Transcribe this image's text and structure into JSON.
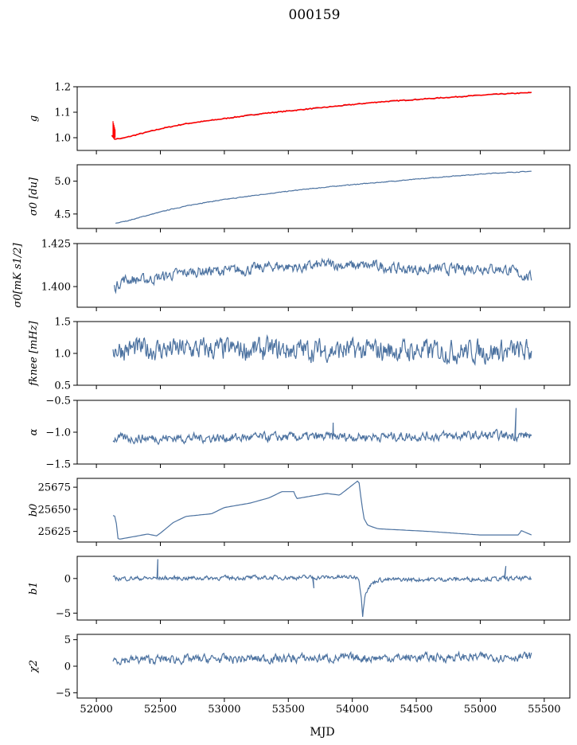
{
  "figure": {
    "title": "000159",
    "xlabel": "MJD",
    "x_ticks": [
      52000,
      52500,
      53000,
      53500,
      54000,
      54500,
      55000,
      55500
    ],
    "xlim": [
      51850,
      55700
    ],
    "line_color": "#4c72a0",
    "fit_color": "#ff0000"
  },
  "chart_data": [
    {
      "type": "line",
      "ylabel": "g",
      "ylim": [
        0.95,
        1.2
      ],
      "y_ticks": [
        1.0,
        1.1,
        1.2
      ],
      "y_tick_labels": [
        "1.0",
        "1.1",
        "1.2"
      ],
      "series": [
        {
          "x": [
            52120,
            52140,
            52200,
            52300,
            52500,
            52700,
            53000,
            53300,
            53600,
            53900,
            54200,
            54500,
            54800,
            55100,
            55400
          ],
          "y": [
            1.01,
            0.995,
            0.997,
            1.01,
            1.035,
            1.055,
            1.075,
            1.095,
            1.11,
            1.125,
            1.14,
            1.15,
            1.16,
            1.17,
            1.177
          ]
        }
      ],
      "fit": {
        "x": [
          52120,
          52140,
          52200,
          52300,
          52500,
          52700,
          53000,
          53300,
          53600,
          53900,
          54200,
          54500,
          54800,
          55100,
          55400
        ],
        "y": [
          1.01,
          0.995,
          0.997,
          1.01,
          1.035,
          1.055,
          1.075,
          1.095,
          1.11,
          1.125,
          1.14,
          1.15,
          1.16,
          1.17,
          1.177
        ]
      },
      "spike": {
        "x": 52130,
        "y_range": [
          1.0,
          1.065
        ]
      }
    },
    {
      "type": "line",
      "ylabel": "σ0 [du]",
      "ylim": [
        4.28,
        5.25
      ],
      "y_ticks": [
        4.5,
        5.0
      ],
      "y_tick_labels": [
        "4.5",
        "5.0"
      ],
      "series": [
        {
          "x": [
            52150,
            52250,
            52400,
            52600,
            52800,
            53000,
            53300,
            53600,
            53900,
            54200,
            54500,
            54800,
            55100,
            55400
          ],
          "y": [
            4.36,
            4.4,
            4.48,
            4.58,
            4.66,
            4.72,
            4.8,
            4.87,
            4.93,
            4.98,
            5.03,
            5.08,
            5.12,
            5.15
          ]
        }
      ],
      "noise": 0.005
    },
    {
      "type": "line",
      "ylabel": "σ0[mK s1/2]",
      "ylim": [
        1.388,
        1.425
      ],
      "y_ticks": [
        1.4,
        1.425
      ],
      "y_tick_labels": [
        "1.400",
        "1.425"
      ],
      "series": [
        {
          "x": [
            52140,
            52200,
            52400,
            52600,
            52800,
            53000,
            53200,
            53400,
            53600,
            53800,
            54000,
            54200,
            54400,
            54600,
            54800,
            55000,
            55200,
            55400
          ],
          "y": [
            1.399,
            1.404,
            1.404,
            1.407,
            1.409,
            1.409,
            1.41,
            1.412,
            1.411,
            1.413,
            1.412,
            1.412,
            1.41,
            1.41,
            1.41,
            1.411,
            1.41,
            1.405
          ]
        }
      ],
      "noise": 0.003
    },
    {
      "type": "line",
      "ylabel": "fknee [mHz]",
      "ylim": [
        0.5,
        1.5
      ],
      "y_ticks": [
        0.5,
        1.0,
        1.5
      ],
      "y_tick_labels": [
        "0.5",
        "1.0",
        "1.5"
      ],
      "series": [
        {
          "x": [
            52130,
            55400
          ],
          "y": [
            1.07,
            1.03
          ]
        }
      ],
      "noise": 0.17
    },
    {
      "type": "line",
      "ylabel": "α",
      "ylim": [
        -1.5,
        -0.5
      ],
      "y_ticks": [
        -1.5,
        -1.0,
        -0.5
      ],
      "y_tick_labels": [
        "−1.5",
        "−1.0",
        "−0.5"
      ],
      "series": [
        {
          "x": [
            52130,
            55400
          ],
          "y": [
            -1.1,
            -1.05
          ]
        }
      ],
      "noise": 0.07,
      "spikes": [
        {
          "x": 53850,
          "y": -0.85
        },
        {
          "x": 55280,
          "y": -0.62
        }
      ]
    },
    {
      "type": "line",
      "ylabel": "b0",
      "ylim": [
        25613,
        25685
      ],
      "y_ticks": [
        25625,
        25650,
        25675
      ],
      "y_tick_labels": [
        "25625",
        "25650",
        "25675"
      ],
      "series": [
        {
          "x": [
            52130,
            52150,
            52170,
            52250,
            52400,
            52470,
            52500,
            52600,
            52700,
            52900,
            53000,
            53200,
            53350,
            53450,
            53550,
            53560,
            53800,
            53900,
            54050,
            54070,
            54090,
            54120,
            54200,
            54600,
            55000,
            55300,
            55320,
            55400
          ],
          "y": [
            25643,
            25642,
            25616,
            25618,
            25622,
            25620,
            25623,
            25635,
            25642,
            25645,
            25652,
            25657,
            25663,
            25670,
            25670,
            25662,
            25668,
            25666,
            25683,
            25660,
            25640,
            25632,
            25628,
            25625,
            25621,
            25621,
            25626,
            25621
          ]
        }
      ]
    },
    {
      "type": "line",
      "ylabel": "b1",
      "ylim": [
        -6,
        3.2
      ],
      "y_ticks": [
        -5,
        0
      ],
      "y_tick_labels": [
        "−5",
        "0"
      ],
      "series": [
        {
          "x": [
            52130,
            54050,
            54070,
            54080,
            54100,
            54150,
            54200,
            55400
          ],
          "y": [
            0,
            0.2,
            -2.5,
            -5.5,
            -2,
            -0.8,
            -0.2,
            0
          ]
        }
      ],
      "noise": 0.3,
      "spikes": [
        {
          "x": 52480,
          "y": 2.8
        },
        {
          "x": 55200,
          "y": 1.8
        },
        {
          "x": 53700,
          "y": -1.4
        }
      ]
    },
    {
      "type": "line",
      "ylabel": "χ2",
      "ylim": [
        -6,
        6
      ],
      "y_ticks": [
        -5,
        0,
        5
      ],
      "y_tick_labels": [
        "−5",
        "0",
        "5"
      ],
      "series": [
        {
          "x": [
            52130,
            55400
          ],
          "y": [
            1.2,
            1.8
          ]
        }
      ],
      "noise": 0.8
    }
  ]
}
